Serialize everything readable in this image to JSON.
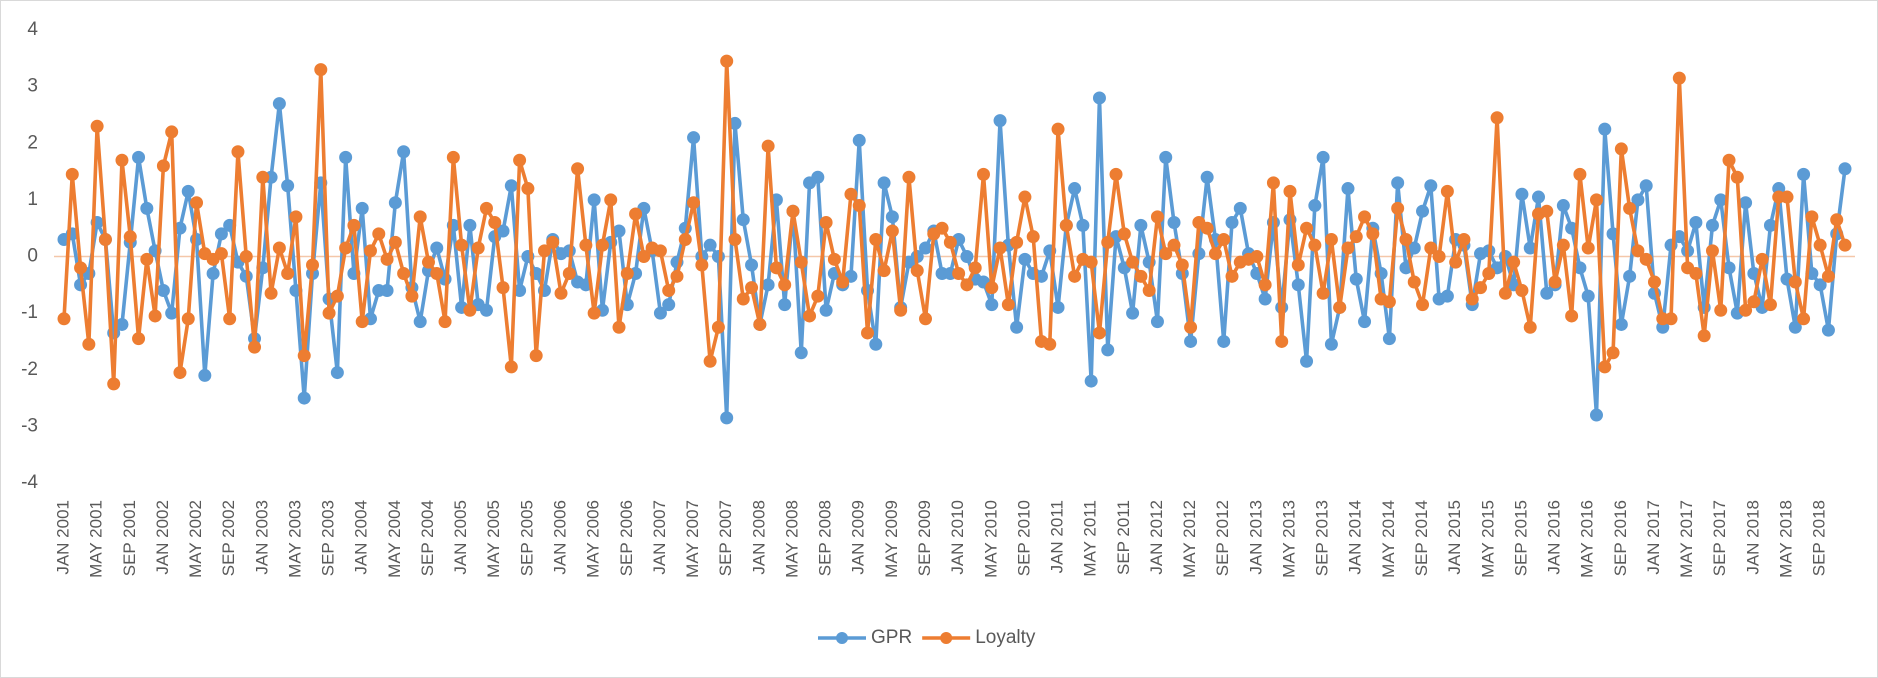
{
  "chart_data": {
    "type": "line",
    "categories": [
      "JAN 2001",
      null,
      null,
      null,
      "MAY 2001",
      null,
      null,
      null,
      "SEP 2001",
      null,
      null,
      null,
      "JAN 2002",
      null,
      null,
      null,
      "MAY 2002",
      null,
      null,
      null,
      "SEP 2002",
      null,
      null,
      null,
      "JAN 2003",
      null,
      null,
      null,
      "MAY 2003",
      null,
      null,
      null,
      "SEP 2003",
      null,
      null,
      null,
      "JAN 2004",
      null,
      null,
      null,
      "MAY 2004",
      null,
      null,
      null,
      "SEP 2004",
      null,
      null,
      null,
      "JAN 2005",
      null,
      null,
      null,
      "MAY 2005",
      null,
      null,
      null,
      "SEP 2005",
      null,
      null,
      null,
      "JAN 2006",
      null,
      null,
      null,
      "MAY 2006",
      null,
      null,
      null,
      "SEP 2006",
      null,
      null,
      null,
      "JAN 2007",
      null,
      null,
      null,
      "MAY 2007",
      null,
      null,
      null,
      "SEP 2007",
      null,
      null,
      null,
      "JAN 2008",
      null,
      null,
      null,
      "MAY 2008",
      null,
      null,
      null,
      "SEP 2008",
      null,
      null,
      null,
      "JAN 2009",
      null,
      null,
      null,
      "MAY 2009",
      null,
      null,
      null,
      "SEP 2009",
      null,
      null,
      null,
      "JAN 2010",
      null,
      null,
      null,
      "MAY 2010",
      null,
      null,
      null,
      "SEP 2010",
      null,
      null,
      null,
      "JAN 2011",
      null,
      null,
      null,
      "MAY 2011",
      null,
      null,
      null,
      "SEP 2011",
      null,
      null,
      null,
      "JAN 2012",
      null,
      null,
      null,
      "MAY 2012",
      null,
      null,
      null,
      "SEP 2012",
      null,
      null,
      null,
      "JAN 2013",
      null,
      null,
      null,
      "MAY 2013",
      null,
      null,
      null,
      "SEP 2013",
      null,
      null,
      null,
      "JAN 2014",
      null,
      null,
      null,
      "MAY 2014",
      null,
      null,
      null,
      "SEP 2014",
      null,
      null,
      null,
      "JAN 2015",
      null,
      null,
      null,
      "MAY 2015",
      null,
      null,
      null,
      "SEP 2015",
      null,
      null,
      null,
      "JAN 2016",
      null,
      null,
      null,
      "MAY 2016",
      null,
      null,
      null,
      "SEP 2016",
      null,
      null,
      null,
      "JAN 2017",
      null,
      null,
      null,
      "MAY 2017",
      null,
      null,
      null,
      "SEP 2017",
      null,
      null,
      null,
      "JAN 2018",
      null,
      null,
      null,
      "MAY 2018",
      null,
      null,
      null,
      "SEP 2018",
      null,
      null,
      null
    ],
    "series": [
      {
        "name": "GPR",
        "color": "#5b9bd5",
        "values": [
          0.3,
          0.4,
          -0.5,
          -0.3,
          0.6,
          0.3,
          -1.35,
          -1.2,
          0.25,
          1.75,
          0.85,
          0.1,
          -0.6,
          -1.0,
          0.5,
          1.15,
          0.3,
          -2.1,
          -0.3,
          0.4,
          0.55,
          -0.1,
          -0.35,
          -1.45,
          -0.2,
          1.4,
          2.7,
          1.25,
          -0.6,
          -2.5,
          -0.3,
          1.3,
          -0.75,
          -2.05,
          1.75,
          -0.3,
          0.85,
          -1.1,
          -0.6,
          -0.6,
          0.95,
          1.85,
          -0.55,
          -1.15,
          -0.25,
          0.15,
          -0.4,
          0.55,
          -0.9,
          0.55,
          -0.85,
          -0.95,
          0.35,
          0.45,
          1.25,
          -0.6,
          0.0,
          -0.3,
          -0.6,
          0.3,
          0.05,
          0.1,
          -0.45,
          -0.5,
          1.0,
          -0.95,
          0.25,
          0.45,
          -0.85,
          -0.3,
          0.85,
          0.1,
          -1.0,
          -0.85,
          -0.1,
          0.5,
          2.1,
          0.0,
          0.2,
          0.0,
          -2.85,
          2.35,
          0.65,
          -0.15,
          -1.2,
          -0.5,
          1.0,
          -0.85,
          0.8,
          -1.7,
          1.3,
          1.4,
          -0.95,
          -0.3,
          -0.5,
          -0.35,
          2.05,
          -0.6,
          -1.55,
          1.3,
          0.7,
          -0.9,
          -0.1,
          0.0,
          0.15,
          0.45,
          -0.3,
          -0.3,
          0.3,
          0.0,
          -0.4,
          -0.45,
          -0.85,
          2.4,
          0.2,
          -1.25,
          -0.05,
          -0.3,
          -0.35,
          0.1,
          -0.9,
          0.55,
          1.2,
          0.55,
          -2.2,
          2.8,
          -1.65,
          0.35,
          -0.2,
          -1.0,
          0.55,
          -0.1,
          -1.15,
          1.75,
          0.6,
          -0.3,
          -1.5,
          0.05,
          1.4,
          0.3,
          -1.5,
          0.6,
          0.85,
          0.05,
          -0.3,
          -0.75,
          0.6,
          -0.9,
          0.65,
          -0.5,
          -1.85,
          0.9,
          1.75,
          -1.55,
          -0.9,
          1.2,
          -0.4,
          -1.15,
          0.5,
          -0.3,
          -1.45,
          1.3,
          -0.2,
          0.15,
          0.8,
          1.25,
          -0.75,
          -0.7,
          0.3,
          0.2,
          -0.85,
          0.05,
          0.1,
          -0.2,
          0.0,
          -0.5,
          1.1,
          0.15,
          1.05,
          -0.65,
          -0.5,
          0.9,
          0.5,
          -0.2,
          -0.7,
          -2.8,
          2.25,
          0.4,
          -1.2,
          -0.35,
          1.0,
          1.25,
          -0.65,
          -1.25,
          0.2,
          0.35,
          0.1,
          0.6,
          -0.9,
          0.55,
          1.0,
          -0.2,
          -1.0,
          0.95,
          -0.3,
          -0.9,
          0.55,
          1.2,
          -0.4,
          -1.25,
          1.45,
          -0.3,
          -0.5,
          -1.3,
          0.4,
          1.55
        ]
      },
      {
        "name": "Loyalty",
        "color": "#ed7d31",
        "values": [
          -1.1,
          1.45,
          -0.2,
          -1.55,
          2.3,
          0.3,
          -2.25,
          1.7,
          0.35,
          -1.45,
          -0.05,
          -1.05,
          1.6,
          2.2,
          -2.05,
          -1.1,
          0.95,
          0.05,
          -0.05,
          0.05,
          -1.1,
          1.85,
          0.0,
          -1.6,
          1.4,
          -0.65,
          0.15,
          -0.3,
          0.7,
          -1.75,
          -0.15,
          3.3,
          -1.0,
          -0.7,
          0.15,
          0.55,
          -1.15,
          0.1,
          0.4,
          -0.05,
          0.25,
          -0.3,
          -0.7,
          0.7,
          -0.1,
          -0.3,
          -1.15,
          1.75,
          0.2,
          -0.95,
          0.15,
          0.85,
          0.6,
          -0.55,
          -1.95,
          1.7,
          1.2,
          -1.75,
          0.1,
          0.25,
          -0.65,
          -0.3,
          1.55,
          0.2,
          -1.0,
          0.2,
          1.0,
          -1.25,
          -0.3,
          0.75,
          0.0,
          0.15,
          0.1,
          -0.6,
          -0.35,
          0.3,
          0.95,
          -0.15,
          -1.85,
          -1.25,
          3.45,
          0.3,
          -0.75,
          -0.55,
          -1.2,
          1.95,
          -0.2,
          -0.5,
          0.8,
          -0.1,
          -1.05,
          -0.7,
          0.6,
          -0.05,
          -0.45,
          1.1,
          0.9,
          -1.35,
          0.3,
          -0.25,
          0.45,
          -0.95,
          1.4,
          -0.25,
          -1.1,
          0.4,
          0.5,
          0.25,
          -0.3,
          -0.5,
          -0.2,
          1.45,
          -0.55,
          0.15,
          -0.85,
          0.25,
          1.05,
          0.35,
          -1.5,
          -1.55,
          2.25,
          0.55,
          -0.35,
          -0.05,
          -0.1,
          -1.35,
          0.25,
          1.45,
          0.4,
          -0.1,
          -0.35,
          -0.6,
          0.7,
          0.05,
          0.2,
          -0.15,
          -1.25,
          0.6,
          0.5,
          0.05,
          0.3,
          -0.35,
          -0.1,
          -0.05,
          0.0,
          -0.5,
          1.3,
          -1.5,
          1.15,
          -0.15,
          0.5,
          0.2,
          -0.65,
          0.3,
          -0.9,
          0.15,
          0.35,
          0.7,
          0.4,
          -0.75,
          -0.8,
          0.85,
          0.3,
          -0.45,
          -0.85,
          0.15,
          0.0,
          1.15,
          -0.1,
          0.3,
          -0.75,
          -0.55,
          -0.3,
          2.45,
          -0.65,
          -0.1,
          -0.6,
          -1.25,
          0.75,
          0.8,
          -0.45,
          0.2,
          -1.05,
          1.45,
          0.15,
          1.0,
          -1.95,
          -1.7,
          1.9,
          0.85,
          0.1,
          -0.05,
          -0.45,
          -1.1,
          -1.1,
          3.15,
          -0.2,
          -0.3,
          -1.4,
          0.1,
          -0.95,
          1.7,
          1.4,
          -0.95,
          -0.8,
          -0.05,
          -0.85,
          1.05,
          1.05,
          -0.45,
          -1.1,
          0.7,
          0.2,
          -0.35,
          0.65,
          0.2
        ]
      }
    ],
    "ylim": [
      -4,
      4
    ],
    "yticks": [
      -4,
      -3,
      -2,
      -1,
      0,
      1,
      2,
      3,
      4
    ],
    "grid": false,
    "legend": "bottom"
  }
}
